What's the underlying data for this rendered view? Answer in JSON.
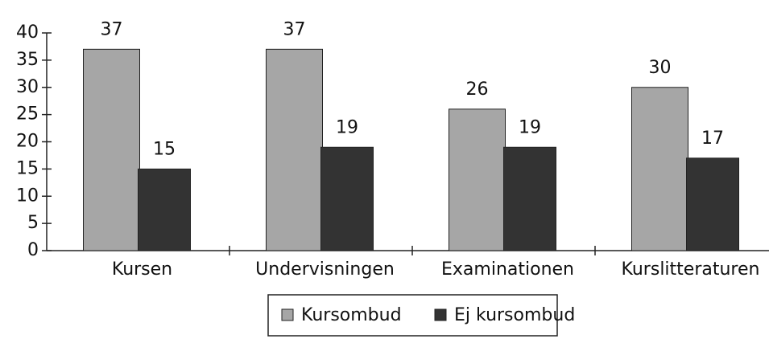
{
  "chart_data": {
    "type": "bar",
    "categories": [
      "Kursen",
      "Undervisningen",
      "Examinationen",
      "Kurslitteraturen"
    ],
    "series": [
      {
        "name": "Kursombud",
        "color": "#a6a6a6",
        "values": [
          37,
          37,
          26,
          30
        ]
      },
      {
        "name": "Ej kursombud",
        "color": "#333333",
        "values": [
          15,
          19,
          19,
          17
        ]
      }
    ],
    "ylim": [
      0,
      40
    ],
    "yticks": [
      0,
      5,
      10,
      15,
      20,
      25,
      30,
      35,
      40
    ],
    "legend": "bottom"
  }
}
